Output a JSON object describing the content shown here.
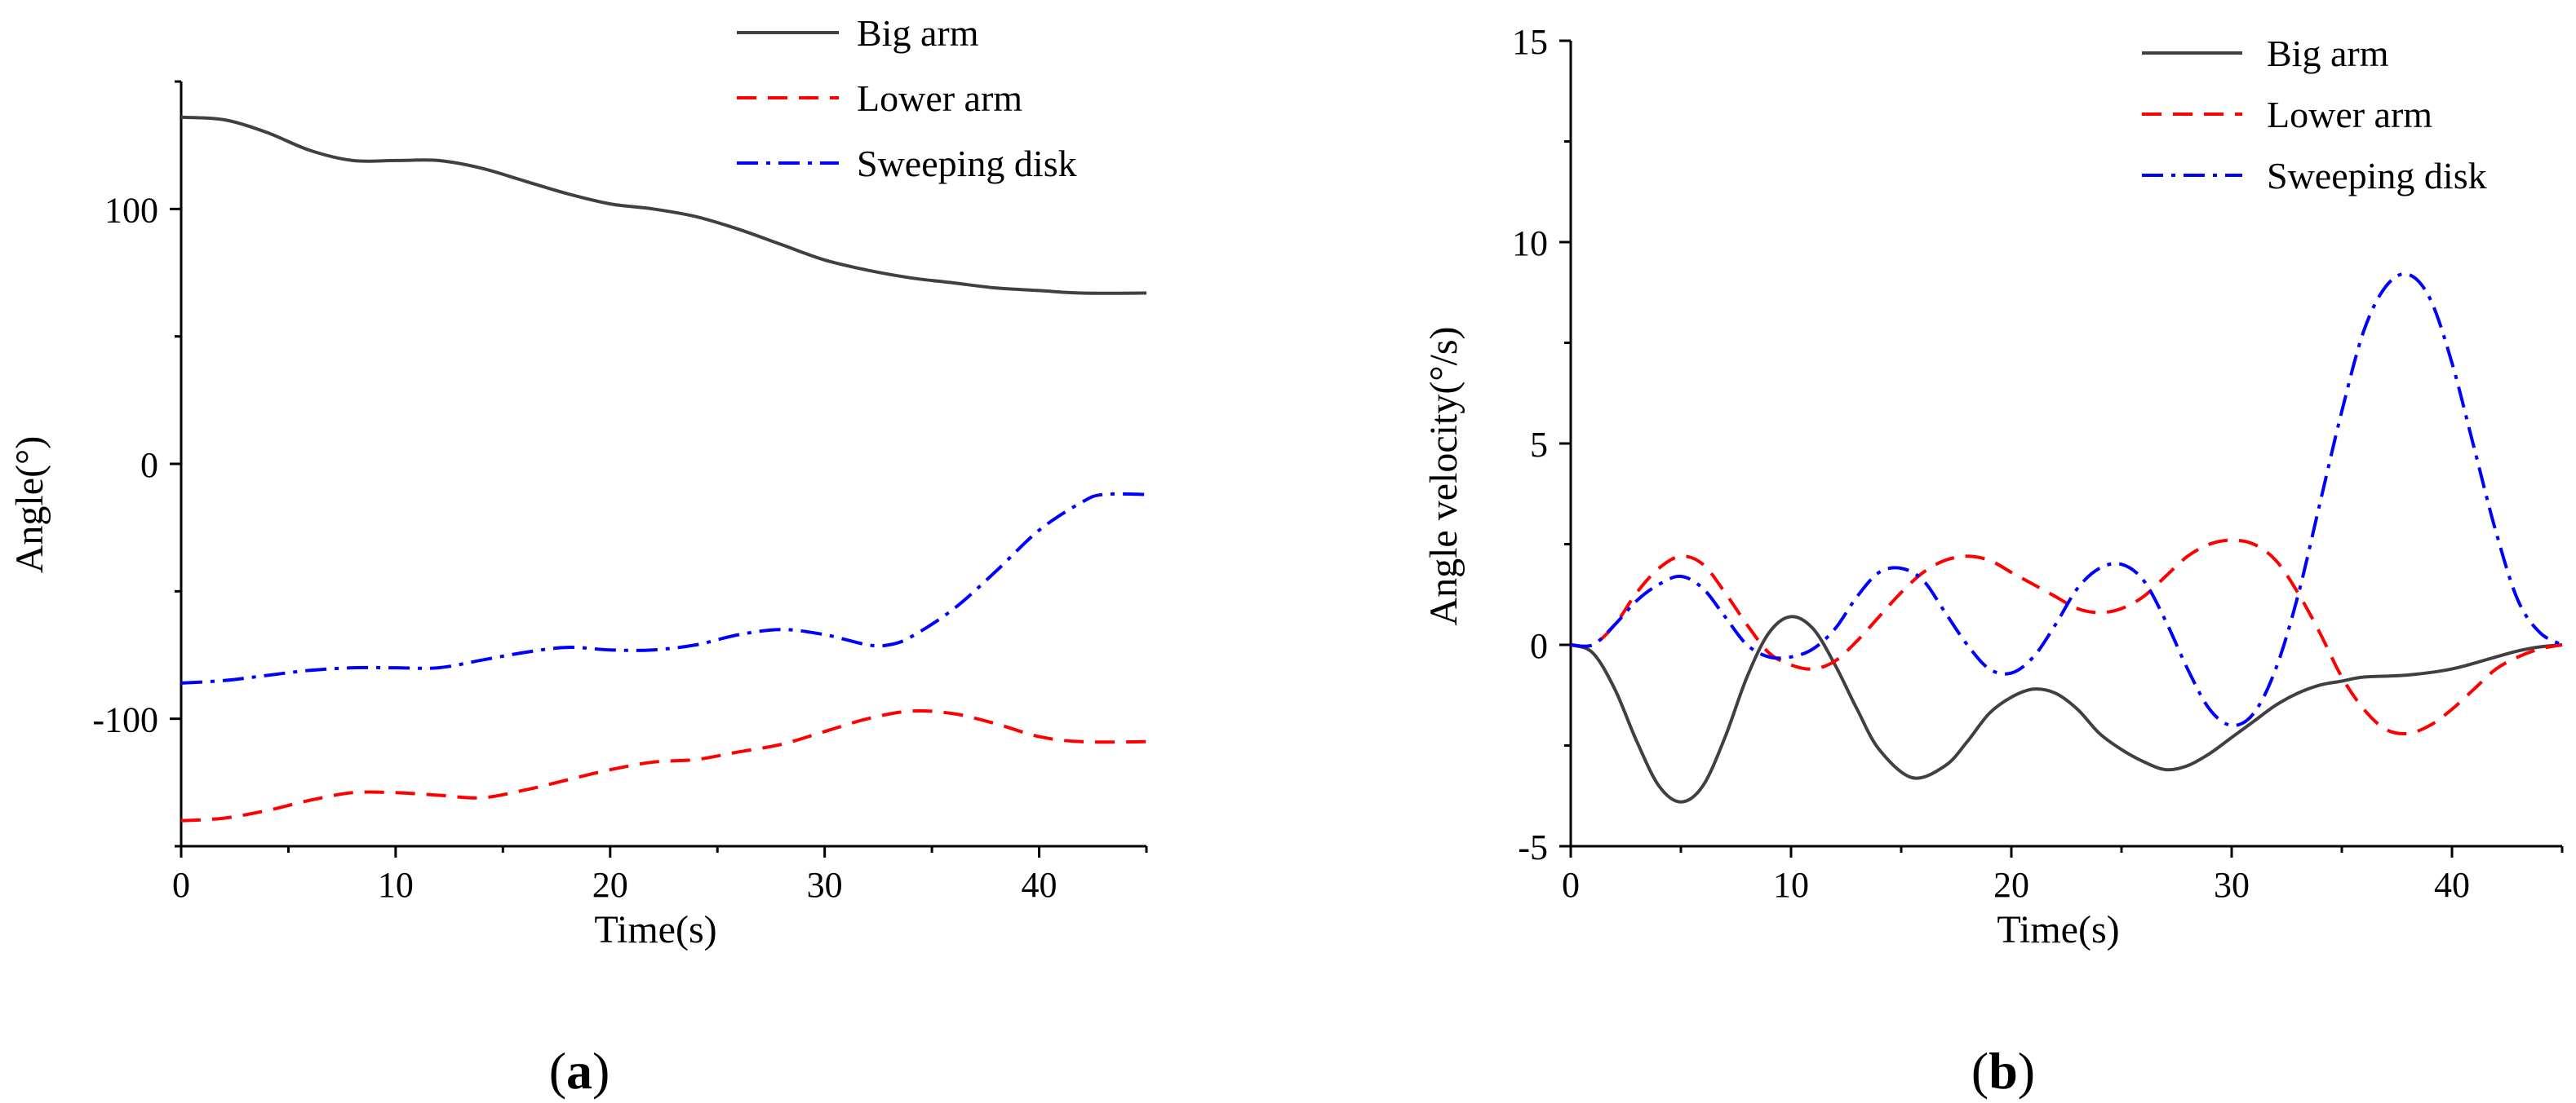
{
  "chart_data": [
    {
      "type": "line",
      "panel_label": "a",
      "title": "",
      "xlabel": "Time(s)",
      "ylabel": "Angle(°)",
      "xlim": [
        0,
        45
      ],
      "ylim": [
        -150,
        150
      ],
      "xticks": [
        0,
        10,
        20,
        30,
        40
      ],
      "yticks": [
        -100,
        0,
        100
      ],
      "legend_position": "top-right",
      "series": [
        {
          "name": "Big arm",
          "color": "#404040",
          "style": "solid",
          "x": [
            0,
            2,
            4,
            6,
            8,
            10,
            12,
            14,
            16,
            18,
            20,
            22,
            24,
            26,
            28,
            30,
            32,
            34,
            36,
            38,
            40,
            42,
            45
          ],
          "y": [
            136,
            135,
            130,
            123,
            119,
            119,
            119,
            116,
            111,
            106,
            102,
            100,
            97,
            92,
            86,
            80,
            76,
            73,
            71,
            69,
            68,
            67,
            67
          ]
        },
        {
          "name": "Lower arm",
          "color": "#ff0000",
          "style": "dashed",
          "x": [
            0,
            2,
            4,
            6,
            8,
            10,
            12,
            14,
            16,
            18,
            20,
            22,
            24,
            26,
            28,
            30,
            32,
            34,
            36,
            38,
            40,
            42,
            45
          ],
          "y": [
            -140,
            -139,
            -136,
            -132,
            -129,
            -129,
            -130,
            -131,
            -128,
            -124,
            -120,
            -117,
            -116,
            -113,
            -110,
            -105,
            -100,
            -97,
            -98,
            -102,
            -107,
            -109,
            -109
          ]
        },
        {
          "name": "Sweeping disk",
          "color": "#0000ff",
          "style": "dash-dot",
          "x": [
            0,
            2,
            4,
            6,
            8,
            10,
            12,
            14,
            16,
            18,
            20,
            22,
            24,
            26,
            28,
            30,
            32,
            33,
            34,
            36,
            38,
            40,
            42,
            43,
            45
          ],
          "y": [
            -86,
            -85,
            -83,
            -81,
            -80,
            -80,
            -80,
            -77,
            -74,
            -72,
            -73,
            -73,
            -71,
            -67,
            -65,
            -67,
            -71,
            -71,
            -68,
            -57,
            -42,
            -26,
            -15,
            -12,
            -12
          ]
        }
      ]
    },
    {
      "type": "line",
      "panel_label": "b",
      "title": "",
      "xlabel": "Time(s)",
      "ylabel": "Angle velocity(°/s)",
      "xlim": [
        0,
        45
      ],
      "ylim": [
        -5,
        15
      ],
      "xticks": [
        0,
        10,
        20,
        30,
        40
      ],
      "yticks": [
        -5,
        0,
        5,
        10,
        15
      ],
      "legend_position": "top-right",
      "series": [
        {
          "name": "Big arm",
          "color": "#404040",
          "style": "solid",
          "x": [
            0,
            1,
            2,
            3,
            4,
            5,
            6,
            7,
            8,
            9,
            10,
            11,
            12,
            13,
            14,
            15.5,
            17,
            18,
            19,
            20,
            21,
            22,
            23,
            24,
            25,
            26,
            27,
            28,
            29,
            30,
            31,
            32,
            33,
            34,
            35,
            36,
            38,
            40,
            42,
            43,
            44,
            45
          ],
          "y": [
            0,
            -0.2,
            -1.1,
            -2.4,
            -3.5,
            -3.9,
            -3.5,
            -2.3,
            -0.8,
            0.3,
            0.7,
            0.4,
            -0.5,
            -1.6,
            -2.6,
            -3.3,
            -3.0,
            -2.4,
            -1.7,
            -1.3,
            -1.1,
            -1.2,
            -1.6,
            -2.2,
            -2.6,
            -2.9,
            -3.1,
            -3.0,
            -2.7,
            -2.3,
            -1.9,
            -1.5,
            -1.2,
            -1.0,
            -0.9,
            -0.8,
            -0.75,
            -0.6,
            -0.3,
            -0.15,
            -0.05,
            0
          ]
        },
        {
          "name": "Lower arm",
          "color": "#ff0000",
          "style": "dashed",
          "x": [
            0,
            1,
            2,
            3,
            4,
            5,
            6,
            7,
            8,
            9,
            10,
            11,
            12,
            13,
            14,
            15,
            16,
            17,
            18,
            19,
            20,
            21,
            22,
            23,
            24,
            25,
            26,
            27,
            28,
            29,
            30,
            31,
            32,
            33,
            34,
            35,
            36,
            37,
            38,
            39,
            40,
            41,
            42,
            43,
            44,
            45
          ],
          "y": [
            0,
            0,
            0.5,
            1.3,
            1.9,
            2.2,
            2.0,
            1.3,
            0.5,
            -0.2,
            -0.5,
            -0.6,
            -0.4,
            0.1,
            0.7,
            1.3,
            1.8,
            2.1,
            2.2,
            2.1,
            1.8,
            1.5,
            1.2,
            0.9,
            0.8,
            0.9,
            1.2,
            1.7,
            2.2,
            2.5,
            2.6,
            2.5,
            2.1,
            1.3,
            0.3,
            -0.8,
            -1.6,
            -2.1,
            -2.2,
            -2.0,
            -1.6,
            -1.1,
            -0.6,
            -0.3,
            -0.1,
            0
          ]
        },
        {
          "name": "Sweeping disk",
          "color": "#0000ff",
          "style": "dash-dot",
          "x": [
            0,
            1,
            2,
            3,
            4,
            5,
            6,
            7,
            8,
            9,
            10,
            11,
            12,
            13,
            14,
            15,
            16,
            17,
            18,
            19,
            20,
            21,
            22,
            23,
            24,
            25,
            26,
            27,
            28,
            29,
            30,
            31,
            32,
            33,
            34,
            35,
            36,
            37,
            38,
            39,
            40,
            41,
            42,
            43,
            44,
            45
          ],
          "y": [
            0,
            0,
            0.5,
            1.1,
            1.5,
            1.7,
            1.4,
            0.7,
            0,
            -0.3,
            -0.3,
            -0.1,
            0.4,
            1.2,
            1.8,
            1.9,
            1.6,
            0.8,
            0,
            -0.6,
            -0.7,
            -0.3,
            0.5,
            1.4,
            1.9,
            2.0,
            1.6,
            0.6,
            -0.6,
            -1.6,
            -2.0,
            -1.7,
            -0.6,
            1.2,
            3.5,
            5.8,
            7.8,
            8.9,
            9.2,
            8.6,
            7.0,
            4.9,
            2.8,
            1.1,
            0.3,
            0
          ]
        }
      ]
    }
  ]
}
